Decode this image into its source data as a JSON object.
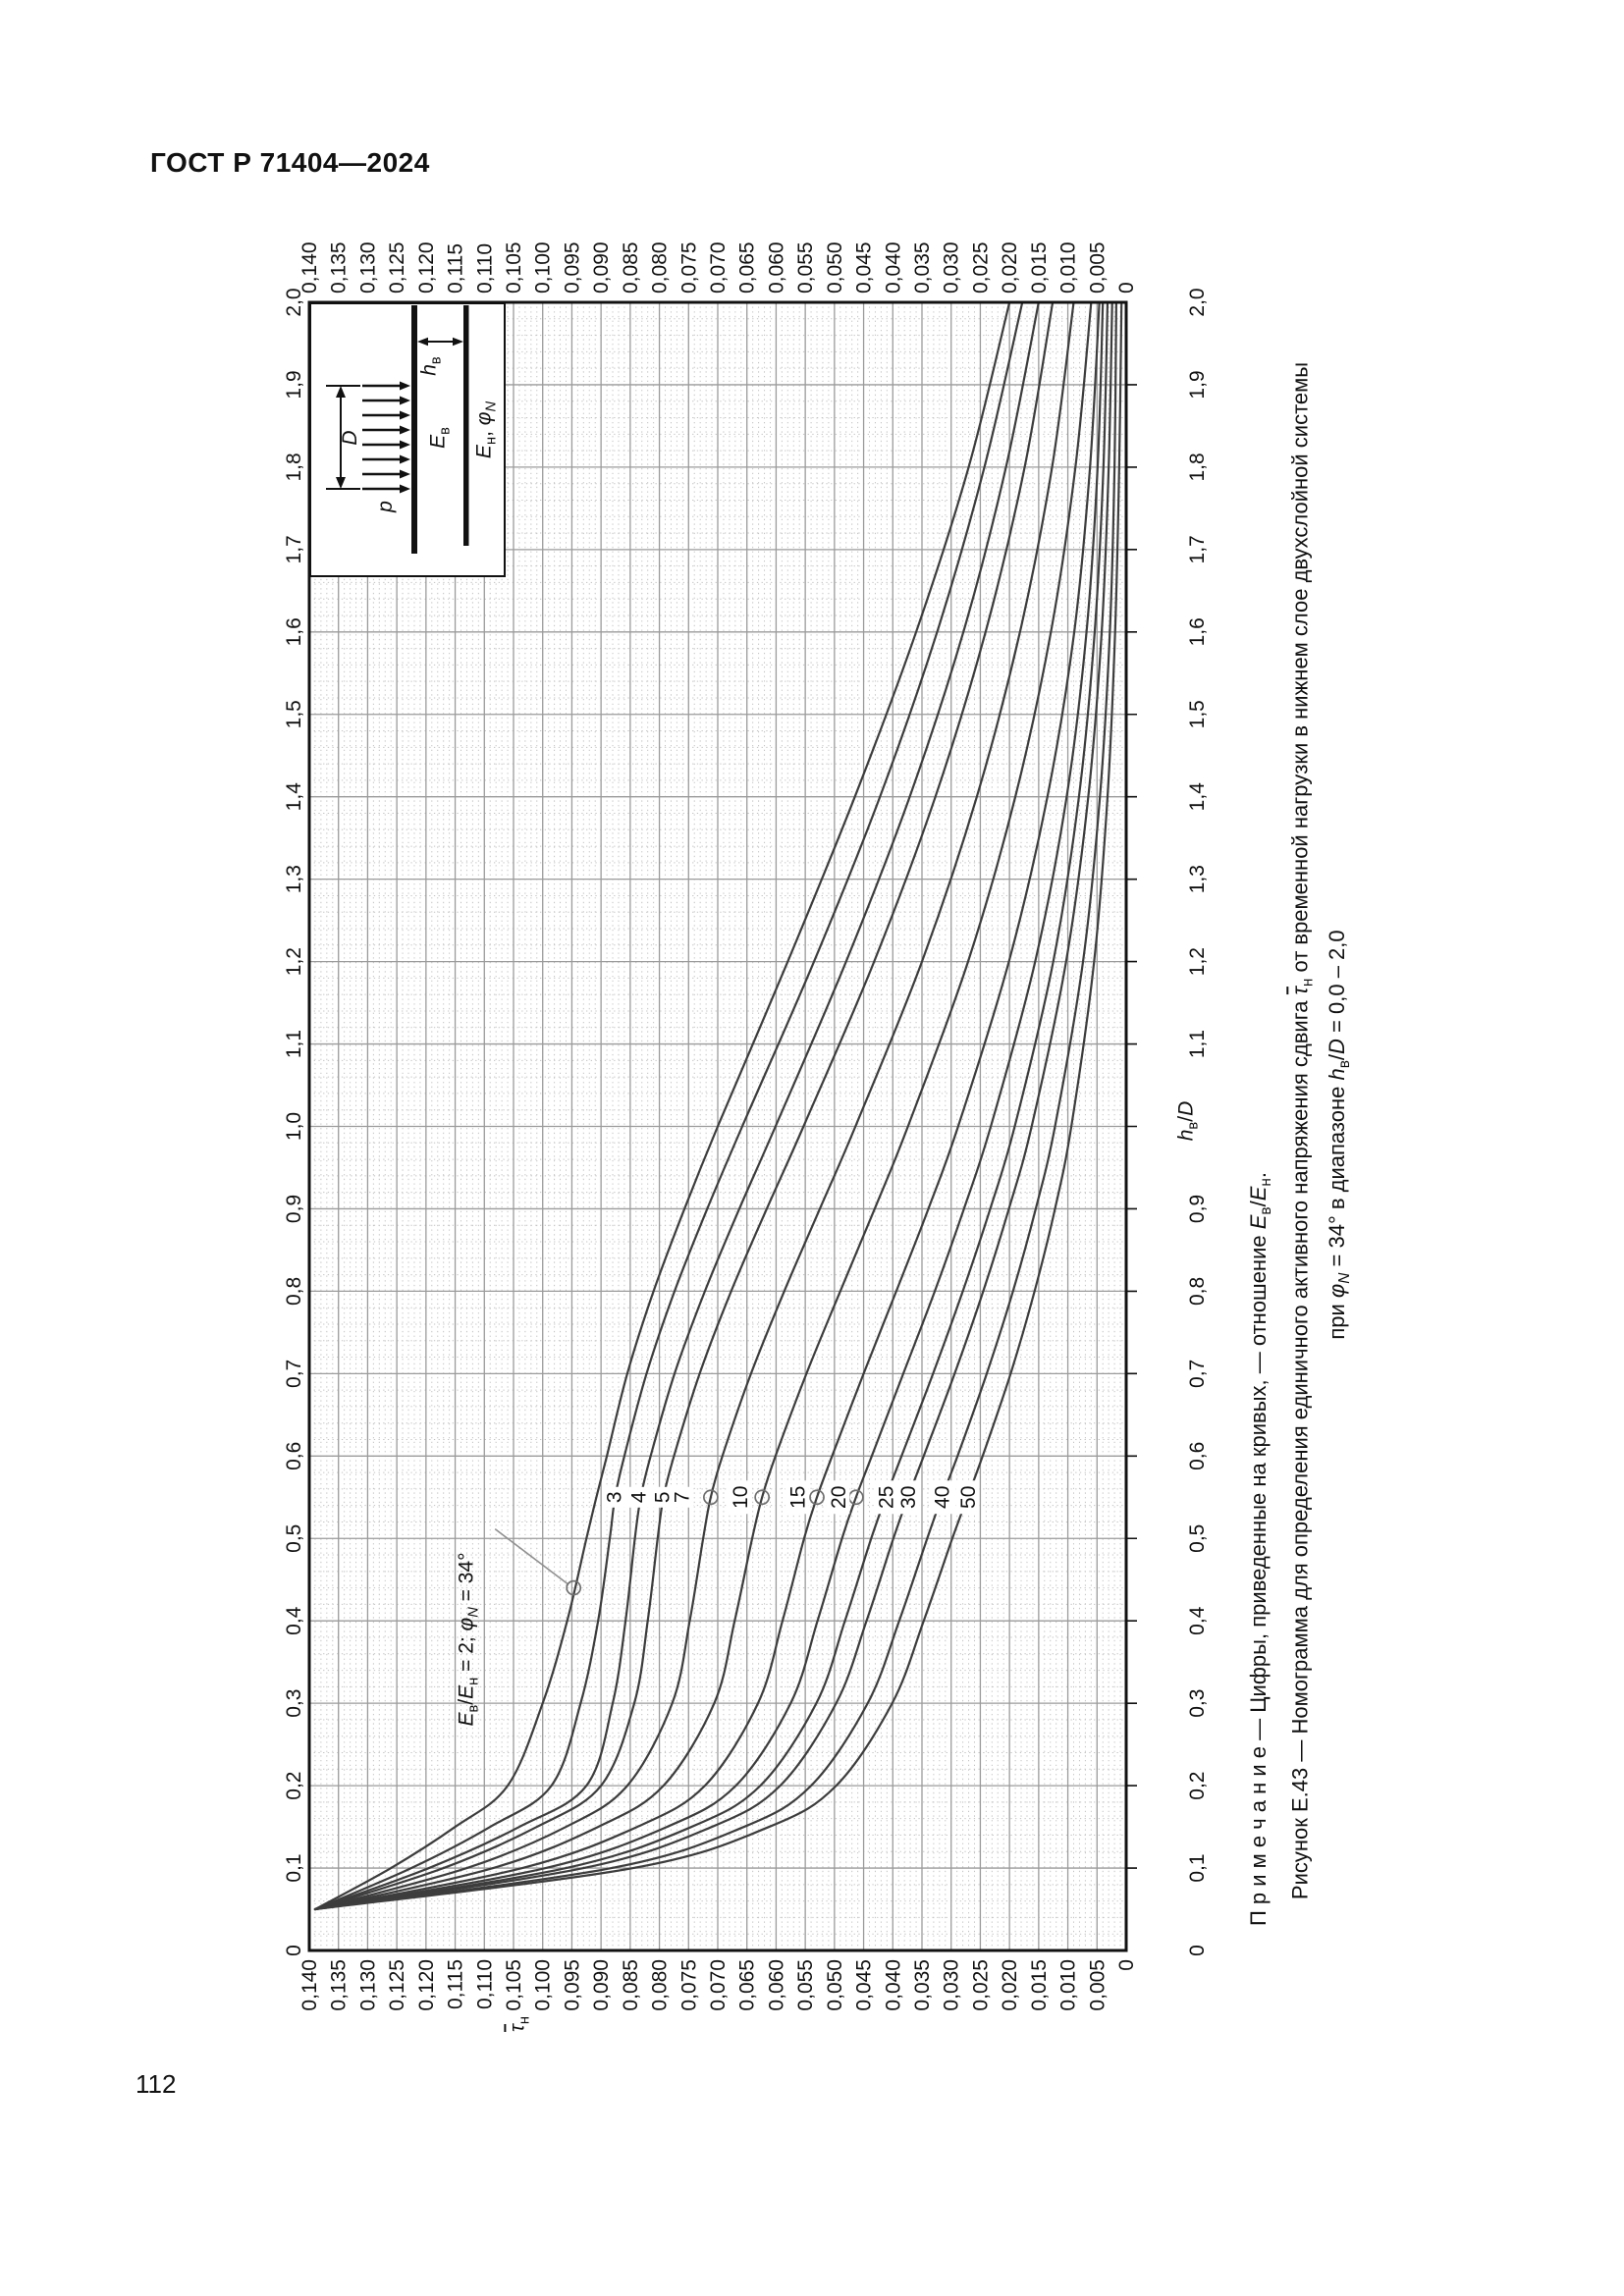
{
  "page": {
    "header": "ГОСТ Р 71404—2024",
    "number": "112"
  },
  "captions": {
    "note_html": "П р и м е ч а н и е — Цифры, приведенные на кривых, — отношение <i>E</i><sub>в</sub>/<i>E</i><sub>н</sub>.",
    "note_text": "Примечание — Цифры, приведенные на кривых, — отношение Eв/Eн.",
    "figure_html": "Рисунок Е.43 — Номограмма для определения единичного активного напряжения сдвига <span class=\"ov\"><i>τ</i></span><sub>н</sub> от временной нагрузки в нижнем слое двухслойной системы",
    "figure_text": "Рисунок Е.43 — Номограмма для определения единичного активного напряжения сдвига τ̄н от временной нагрузки в нижнем слое двухслойной системы",
    "figure_cont_html": "при <i>φ</i><sub><i>N</i></sub> = 34° в диапазоне <i>h</i><sub>в</sub>/<i>D</i> = 0,0 – 2,0",
    "figure_cont_text": "при φN = 34° в диапазоне hв/D = 0,0 – 2,0"
  },
  "chart_data": {
    "type": "line",
    "title": "Рисунок Е.43 — Номограмма для определения единичного активного напряжения сдвига τ̄н от временной нагрузки в нижнем слое двухслойной системы при φN = 34° в диапазоне hв/D = 0,0 – 2,0",
    "xlabel": "hв/D",
    "ylabel": "τ̄н",
    "xlabel_html": "<i>h</i><sub>в</sub>/<i>D</i>",
    "ylabel_html": "<span class=\"ov\"><i>τ</i></span><sub>н</sub>",
    "xlim": [
      0,
      2.0
    ],
    "ylim": [
      0,
      0.14
    ],
    "x_axis": {
      "major": 0.1,
      "minor": 0.02,
      "label_sides": [
        "top",
        "bottom"
      ],
      "skip_bottom_label": "1,0"
    },
    "y_axis": {
      "major": 0.005,
      "minor": 0.001,
      "label_sides": [
        "left",
        "right"
      ]
    },
    "grid": "on",
    "legend_note": "Цифры, приведенные на кривых, — отношение Eв/Eн",
    "x_values": [
      0.05,
      0.1,
      0.15,
      0.2,
      0.3,
      0.4,
      0.5,
      0.55,
      0.6,
      0.7,
      0.8,
      0.9,
      1.0,
      1.2,
      1.4,
      1.6,
      1.8,
      2.0
    ],
    "series": [
      {
        "name": "2",
        "values": [
          0.139,
          0.126,
          0.115,
          0.106,
          0.1,
          0.0958,
          0.0925,
          0.0908,
          0.089,
          0.0855,
          0.081,
          0.0757,
          0.07,
          0.058,
          0.0465,
          0.036,
          0.027,
          0.02
        ]
      },
      {
        "name": "3",
        "values": [
          0.139,
          0.1225,
          0.109,
          0.0985,
          0.0935,
          0.0905,
          0.0885,
          0.0876,
          0.086,
          0.0822,
          0.0774,
          0.0718,
          0.0658,
          0.0535,
          0.0422,
          0.0324,
          0.0243,
          0.0178
        ]
      },
      {
        "name": "4",
        "values": [
          0.139,
          0.1195,
          0.104,
          0.0925,
          0.088,
          0.0858,
          0.0842,
          0.0832,
          0.0815,
          0.0774,
          0.0722,
          0.0663,
          0.0601,
          0.048,
          0.0371,
          0.0279,
          0.0206,
          0.015
        ]
      },
      {
        "name": "5",
        "values": [
          0.139,
          0.117,
          0.101,
          0.09,
          0.0843,
          0.082,
          0.0803,
          0.0793,
          0.0775,
          0.0731,
          0.0677,
          0.0616,
          0.0553,
          0.0432,
          0.0327,
          0.0241,
          0.0174,
          0.0126
        ]
      },
      {
        "name": "7",
        "values": [
          0.139,
          0.113,
          0.096,
          0.0855,
          0.0778,
          0.0748,
          0.0725,
          0.0712,
          0.0692,
          0.0643,
          0.0586,
          0.0525,
          0.0464,
          0.035,
          0.0256,
          0.0182,
          0.0127,
          0.009
        ]
      },
      {
        "name": "10",
        "values": [
          0.139,
          0.1085,
          0.0905,
          0.0793,
          0.0706,
          0.0671,
          0.0641,
          0.0624,
          0.0601,
          0.0548,
          0.049,
          0.0431,
          0.0374,
          0.0271,
          0.019,
          0.0129,
          0.0087,
          0.006
        ]
      },
      {
        "name": "15",
        "values": [
          0.139,
          0.1035,
          0.0838,
          0.0722,
          0.0631,
          0.0589,
          0.0552,
          0.053,
          0.0504,
          0.045,
          0.0394,
          0.0339,
          0.0288,
          0.0201,
          0.0135,
          0.0089,
          0.0062,
          0.0046
        ]
      },
      {
        "name": "20",
        "values": [
          0.139,
          0.0995,
          0.0787,
          0.0669,
          0.0575,
          0.0529,
          0.0487,
          0.0463,
          0.0436,
          0.0382,
          0.0328,
          0.0278,
          0.0232,
          0.0156,
          0.0102,
          0.0068,
          0.0049,
          0.004
        ]
      },
      {
        "name": "25",
        "values": [
          0.139,
          0.096,
          0.0745,
          0.0627,
          0.0531,
          0.0482,
          0.0437,
          0.0412,
          0.0385,
          0.0331,
          0.028,
          0.0233,
          0.0191,
          0.0125,
          0.0081,
          0.0054,
          0.0039,
          0.0032
        ]
      },
      {
        "name": "30",
        "values": [
          0.139,
          0.093,
          0.071,
          0.0593,
          0.0497,
          0.0445,
          0.0399,
          0.0374,
          0.0347,
          0.0294,
          0.0245,
          0.0201,
          0.0162,
          0.0103,
          0.0065,
          0.0042,
          0.003,
          0.0024
        ]
      },
      {
        "name": "40",
        "values": [
          0.139,
          0.0882,
          0.0655,
          0.054,
          0.0443,
          0.0389,
          0.0341,
          0.0316,
          0.0289,
          0.0239,
          0.0194,
          0.0155,
          0.0122,
          0.0074,
          0.0045,
          0.0028,
          0.002,
          0.0017
        ]
      },
      {
        "name": "50",
        "values": [
          0.139,
          0.0845,
          0.0612,
          0.0497,
          0.0401,
          0.0347,
          0.0298,
          0.0272,
          0.0246,
          0.0198,
          0.0157,
          0.0122,
          0.0094,
          0.0055,
          0.0032,
          0.0019,
          0.0012,
          0.0008
        ]
      }
    ],
    "curve_labels": [
      {
        "text": "3",
        "h": 0.55,
        "tau": 0.0878
      },
      {
        "text": "4",
        "h": 0.55,
        "tau": 0.0836
      },
      {
        "text": "5",
        "h": 0.55,
        "tau": 0.0796
      },
      {
        "text": "7",
        "h": 0.55,
        "tau": 0.0762
      },
      {
        "text": "10",
        "h": 0.55,
        "tau": 0.0662
      },
      {
        "text": "15",
        "h": 0.55,
        "tau": 0.0564
      },
      {
        "text": "20",
        "h": 0.55,
        "tau": 0.0494
      },
      {
        "text": "25",
        "h": 0.55,
        "tau": 0.0412
      },
      {
        "text": "30",
        "h": 0.55,
        "tau": 0.0374
      },
      {
        "text": "40",
        "h": 0.55,
        "tau": 0.0316
      },
      {
        "text": "50",
        "h": 0.55,
        "tau": 0.0272
      }
    ],
    "markers": [
      {
        "series": "2",
        "h": 0.44,
        "tau": 0.0947
      },
      {
        "series": "7",
        "h": 0.55,
        "tau": 0.0712
      },
      {
        "series": "10",
        "h": 0.55,
        "tau": 0.0624
      },
      {
        "series": "15",
        "h": 0.55,
        "tau": 0.053
      },
      {
        "series": "20",
        "h": 0.55,
        "tau": 0.0463
      }
    ],
    "annotation": {
      "html": "<i>E</i><sub>в</sub>/<i>E</i><sub>н</sub> = 2; <i>φ</i><sub><i>N</i></sub> = 34°",
      "text": "Eв/Eн = 2; φN = 34°",
      "h": 0.378,
      "tau": 0.1122,
      "leader_to": {
        "h": 0.44,
        "tau": 0.0947
      }
    },
    "inset": {
      "p": "p",
      "D": "D",
      "E_top_html": "<i>E</i><sub>в</sub>",
      "h_top_html": "<i>h</i><sub>в</sub>",
      "E_bot_html": "<i>E</i><sub>н</sub>, <i>φ</i><sub><i>N</i></sub>",
      "E_top_text": "Eв",
      "h_top_text": "hв",
      "E_bot_text": "Eн, φN"
    },
    "colors": {
      "curve": "#3d3d3d",
      "grid_major": "#9b9b9b",
      "grid_minor": "#c3c3c3",
      "frame": "#111111",
      "marker": "#6f6f6f",
      "leader": "#8f8f8f",
      "text": "#111111"
    }
  }
}
